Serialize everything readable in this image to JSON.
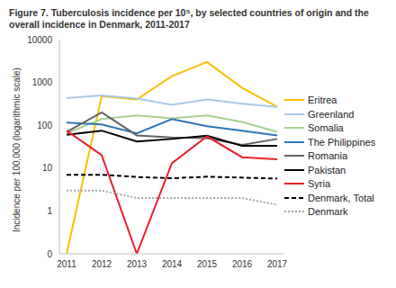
{
  "chart_data": {
    "type": "line",
    "title": "Figure 7. Tuberculosis incidence per 10⁵, by selected countries of origin and the overall incidence in Denmark, 2011-2017",
    "y_label": "Incidence per 100,000 (logarithmic scale)",
    "categories": [
      "2011",
      "2012",
      "2013",
      "2014",
      "2015",
      "2016",
      "2017"
    ],
    "log": "y",
    "grid": false,
    "legend": "right",
    "ylim": [
      0.1,
      10000
    ],
    "yticks": [
      {
        "value": 0.1,
        "label": "0"
      },
      1,
      10,
      100,
      1000,
      10000
    ],
    "series": [
      {
        "name": "Eritrea",
        "color": "#f5c000",
        "line_style": "solid",
        "values": [
          0.1,
          480,
          400,
          1400,
          3000,
          750,
          270
        ]
      },
      {
        "name": "Greenland",
        "color": "#a9c8e6",
        "line_style": "solid",
        "values": [
          430,
          500,
          420,
          300,
          400,
          320,
          270
        ]
      },
      {
        "name": "Somalia",
        "color": "#a9d18e",
        "line_style": "solid",
        "values": [
          65,
          140,
          170,
          145,
          170,
          120,
          70
        ]
      },
      {
        "name": "The Philippines",
        "color": "#2e75b6",
        "line_style": "solid",
        "values": [
          115,
          105,
          65,
          140,
          95,
          75,
          58
        ]
      },
      {
        "name": "Romania",
        "color": "#636363",
        "line_style": "solid",
        "values": [
          70,
          200,
          58,
          52,
          50,
          35,
          48
        ]
      },
      {
        "name": "Pakistan",
        "color": "#000000",
        "line_style": "solid",
        "values": [
          60,
          75,
          42,
          48,
          57,
          33,
          33
        ]
      },
      {
        "name": "Syria",
        "color": "#e8202a",
        "line_style": "solid",
        "values": [
          75,
          20,
          0.1,
          13,
          55,
          18,
          16
        ]
      },
      {
        "name": "Denmark, Total",
        "color": "#000000",
        "line_style": "dashed",
        "values": [
          7,
          7,
          6.2,
          5.8,
          6.3,
          6,
          5.7
        ]
      },
      {
        "name": "Denmark",
        "color": "#a6a6a6",
        "line_style": "dotted",
        "values": [
          3,
          3,
          2,
          2,
          2,
          2,
          1.4
        ]
      }
    ]
  }
}
